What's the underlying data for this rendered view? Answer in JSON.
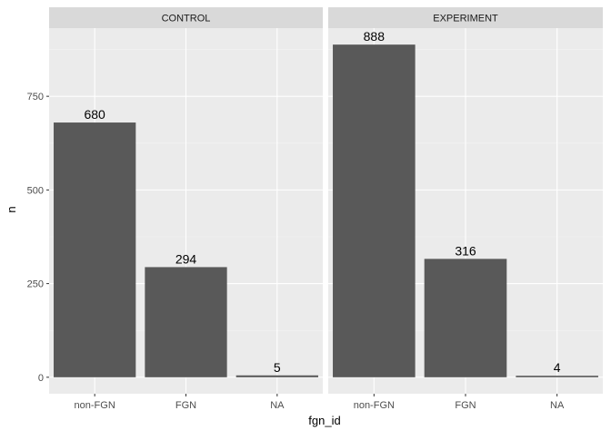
{
  "chart_data": {
    "type": "bar",
    "facets": [
      "CONTROL",
      "EXPERIMENT"
    ],
    "categories": [
      "non-FGN",
      "FGN",
      "NA"
    ],
    "panels": [
      {
        "facet": "CONTROL",
        "values": [
          680,
          294,
          5
        ]
      },
      {
        "facet": "EXPERIMENT",
        "values": [
          888,
          316,
          4
        ]
      }
    ],
    "data_labels": true,
    "xlabel": "fgn_id",
    "ylabel": "n",
    "yticks": [
      0,
      250,
      500,
      750
    ],
    "ylim": [
      -44,
      932
    ],
    "grid": true,
    "colors": {
      "bar": "#595959",
      "panel_bg": "#ebebeb",
      "grid_major": "#ffffff",
      "grid_minor": "#f4f4f4",
      "strip_bg": "#d9d9d9",
      "axis_text": "#4d4d4d",
      "title_text": "#000000"
    }
  }
}
